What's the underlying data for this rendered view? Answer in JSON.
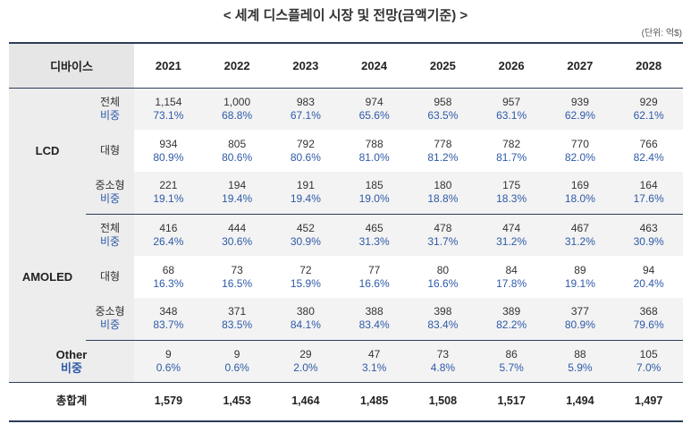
{
  "title": "< 세계 디스플레이 시장 및 전망(금액기준) >",
  "unit": "(단위: 억$)",
  "header": {
    "label": "디바이스",
    "years": [
      "2021",
      "2022",
      "2023",
      "2024",
      "2025",
      "2026",
      "2027",
      "2028"
    ]
  },
  "pct_label": "비중",
  "lcd": {
    "label": "LCD",
    "rows": [
      {
        "name": "전체",
        "pct_label": "비중",
        "values": [
          "1,154",
          "1,000",
          "983",
          "974",
          "958",
          "957",
          "939",
          "929"
        ],
        "pcts": [
          "73.1%",
          "68.8%",
          "67.1%",
          "65.6%",
          "63.5%",
          "63.1%",
          "62.9%",
          "62.1%"
        ]
      },
      {
        "name": "대형",
        "pct_label": "",
        "values": [
          "934",
          "805",
          "792",
          "788",
          "778",
          "782",
          "770",
          "766"
        ],
        "pcts": [
          "80.9%",
          "80.6%",
          "80.6%",
          "81.0%",
          "81.2%",
          "81.7%",
          "82.0%",
          "82.4%"
        ]
      },
      {
        "name": "중소형",
        "pct_label": "비중",
        "values": [
          "221",
          "194",
          "191",
          "185",
          "180",
          "175",
          "169",
          "164"
        ],
        "pcts": [
          "19.1%",
          "19.4%",
          "19.4%",
          "19.0%",
          "18.8%",
          "18.3%",
          "18.0%",
          "17.6%"
        ]
      }
    ]
  },
  "amoled": {
    "label": "AMOLED",
    "rows": [
      {
        "name": "전체",
        "pct_label": "비중",
        "values": [
          "416",
          "444",
          "452",
          "465",
          "478",
          "474",
          "467",
          "463"
        ],
        "pcts": [
          "26.4%",
          "30.6%",
          "30.9%",
          "31.3%",
          "31.7%",
          "31.2%",
          "31.2%",
          "30.9%"
        ]
      },
      {
        "name": "대형",
        "pct_label": "",
        "values": [
          "68",
          "73",
          "72",
          "77",
          "80",
          "84",
          "89",
          "94"
        ],
        "pcts": [
          "16.3%",
          "16.5%",
          "15.9%",
          "16.6%",
          "16.6%",
          "17.8%",
          "19.1%",
          "20.4%"
        ]
      },
      {
        "name": "중소형",
        "pct_label": "비중",
        "values": [
          "348",
          "371",
          "380",
          "388",
          "398",
          "389",
          "377",
          "368"
        ],
        "pcts": [
          "83.7%",
          "83.5%",
          "84.1%",
          "83.4%",
          "83.4%",
          "82.2%",
          "80.9%",
          "79.6%"
        ]
      }
    ]
  },
  "other": {
    "label": "Other",
    "pct_label": "비중",
    "values": [
      "9",
      "9",
      "29",
      "47",
      "73",
      "86",
      "88",
      "105"
    ],
    "pcts": [
      "0.6%",
      "0.6%",
      "2.0%",
      "3.1%",
      "4.8%",
      "5.7%",
      "5.9%",
      "7.0%"
    ]
  },
  "total": {
    "label": "총합계",
    "values": [
      "1,579",
      "1,453",
      "1,464",
      "1,485",
      "1,508",
      "1,517",
      "1,494",
      "1,497"
    ]
  }
}
